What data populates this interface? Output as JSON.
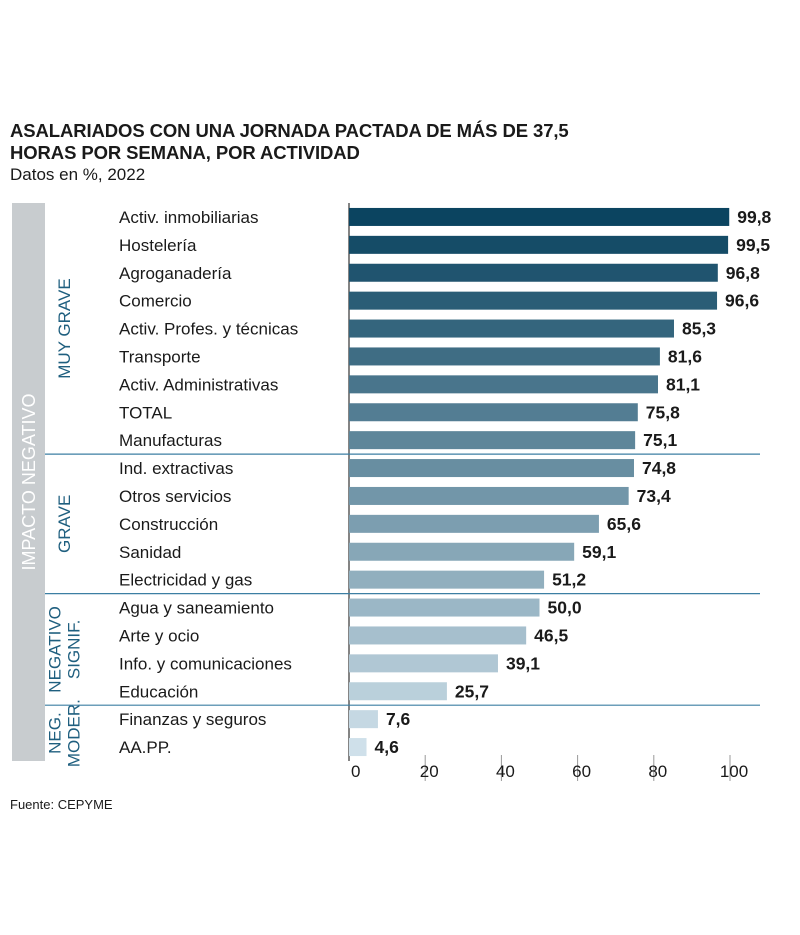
{
  "title": "ASALARIADOS CON UNA JORNADA PACTADA DE MÁS DE 37,5 HORAS POR SEMANA, POR ACTIVIDAD",
  "subtitle": "Datos en %,   2022",
  "source": "Fuente: CEPYME",
  "colors": {
    "group_label": "#1f5f7f",
    "outer_band": "#c8cccf",
    "separator": "#3c7fa3",
    "bar_dark": "#0b4460",
    "bar_light": "#cfe0ea"
  },
  "chart_data": {
    "type": "bar",
    "orientation": "horizontal",
    "outer_label": "IMPACTO NEGATIVO",
    "groups": [
      {
        "label_lines": [
          "MUY GRAVE"
        ],
        "count": 9
      },
      {
        "label_lines": [
          "GRAVE"
        ],
        "count": 5
      },
      {
        "label_lines": [
          "NEGATIVO",
          "SIGNIF."
        ],
        "count": 4
      },
      {
        "label_lines": [
          "NEG.",
          "MODER."
        ],
        "count": 2
      }
    ],
    "categories": [
      "Activ. inmobiliarias",
      "Hostelería",
      "Agroganadería",
      "Comercio",
      "Activ. Profes. y técnicas",
      "Transporte",
      "Activ. Administrativas",
      "TOTAL",
      "Manufacturas",
      "Ind. extractivas",
      "Otros servicios",
      "Construcción",
      "Sanidad",
      "Electricidad y gas",
      "Agua y saneamiento",
      "Arte y ocio",
      "Info. y comunicaciones",
      "Educación",
      "Finanzas y seguros",
      "AA.PP."
    ],
    "values": [
      99.8,
      99.5,
      96.8,
      96.6,
      85.3,
      81.6,
      81.1,
      75.8,
      75.1,
      74.8,
      73.4,
      65.6,
      59.1,
      51.2,
      50.0,
      46.5,
      39.1,
      25.7,
      7.6,
      4.6
    ],
    "value_labels": [
      "99,8",
      "99,5",
      "96,8",
      "96,6",
      "85,3",
      "81,6",
      "81,1",
      "75,8",
      "75,1",
      "74,8",
      "73,4",
      "65,6",
      "59,1",
      "51,2",
      "50,0",
      "46,5",
      "39,1",
      "25,7",
      "7,6",
      "4,6"
    ],
    "xlim": [
      0,
      100
    ],
    "xticks": [
      "0",
      "20",
      "40",
      "60",
      "80",
      "100"
    ]
  }
}
